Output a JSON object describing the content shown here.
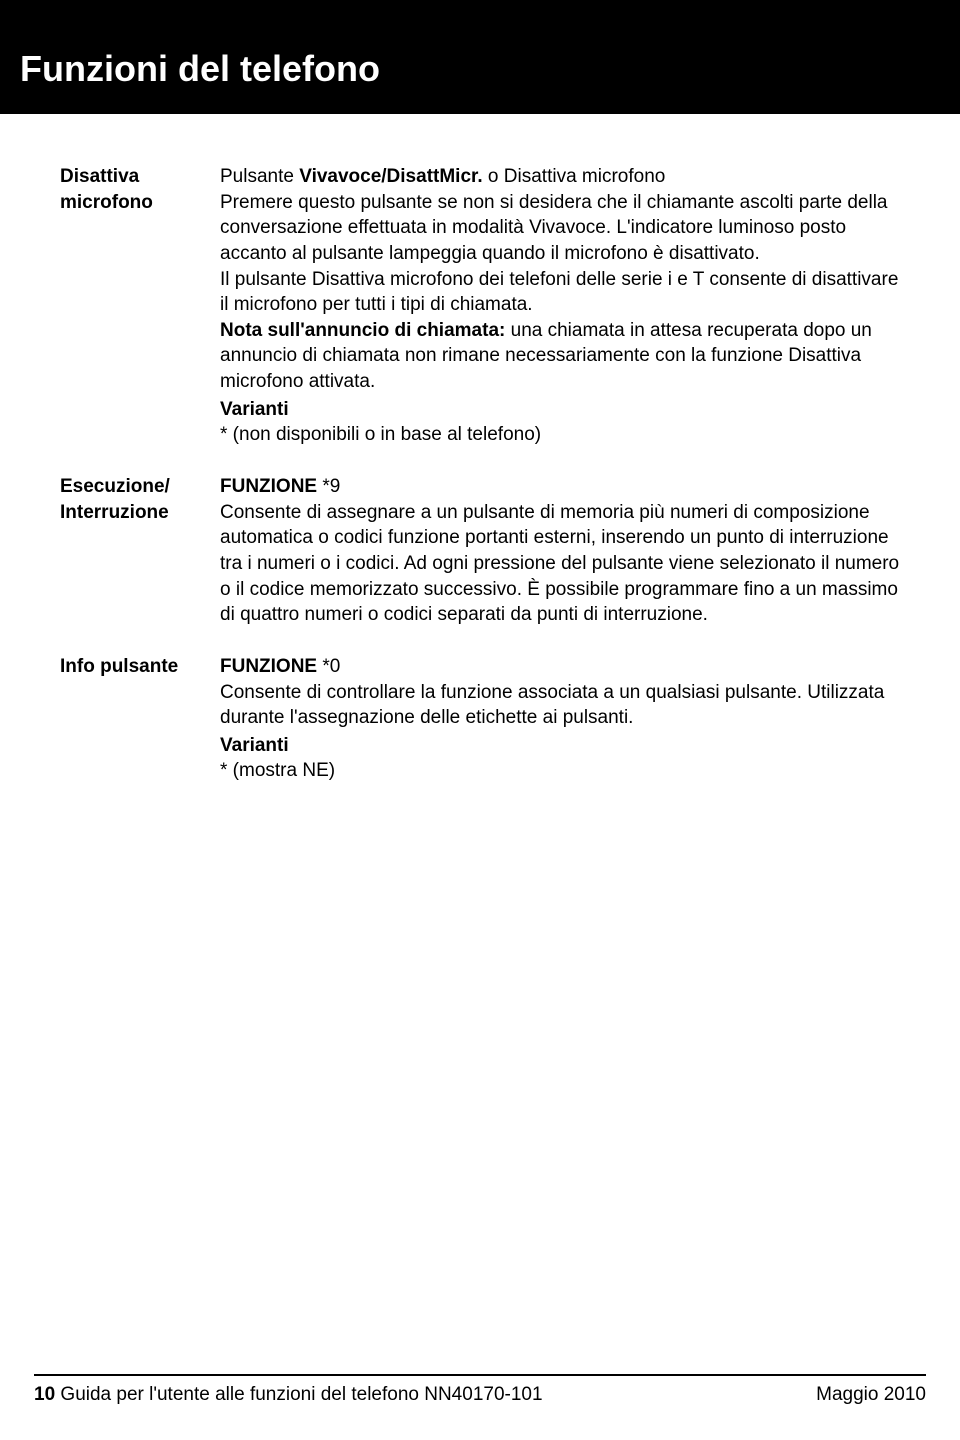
{
  "header": {
    "title": "Funzioni del telefono"
  },
  "entries": [
    {
      "term_line1": "Disattiva",
      "term_line2": "microfono",
      "lead_plain": "Pulsante ",
      "lead_bold": "Vivavoce/DisattMicr.",
      "lead_after": " o Disattiva microfono",
      "p1": "Premere questo pulsante se non si desidera che il chiamante ascolti parte della conversazione effettuata in modalità Vivavoce. L'indicatore luminoso posto accanto al pulsante lampeggia quando il microfono è disattivato.",
      "p2": "Il pulsante Disattiva microfono dei telefoni delle serie i e T consente di disattivare il microfono per tutti i tipi di chiamata.",
      "note_bold": "Nota sull'annuncio di chiamata:",
      "note_rest": " una chiamata in attesa recuperata dopo un annuncio di chiamata non rimane necessariamente con la funzione Disattiva microfono attivata.",
      "varianti": "Varianti",
      "varianti_text": "* (non disponibili o in base al telefono)"
    },
    {
      "term_line1": "Esecuzione/",
      "term_line2": "Interruzione",
      "lead_bold_only": "FUNZIONE",
      "lead_bold_after": " *9",
      "p1": "Consente di assegnare a un pulsante di memoria più numeri di composizione automatica o codici funzione portanti esterni, inserendo un punto di interruzione tra i numeri o i codici. Ad ogni pressione del pulsante viene selezionato il numero o il codice memorizzato successivo. È possibile programmare fino a un massimo di quattro numeri o codici separati da punti di interruzione."
    },
    {
      "term_line1": "Info pulsante",
      "lead_bold_only": "FUNZIONE",
      "lead_bold_after": " *0",
      "p1": "Consente di controllare la funzione associata a un qualsiasi pulsante. Utilizzata durante l'assegnazione delle etichette ai pulsanti.",
      "varianti": "Varianti",
      "varianti_text": "* (mostra NE)"
    }
  ],
  "footer": {
    "page_no": "10",
    "doc_title": " Guida per l'utente alle funzioni del telefono NN40170-101",
    "date": "Maggio 2010"
  }
}
